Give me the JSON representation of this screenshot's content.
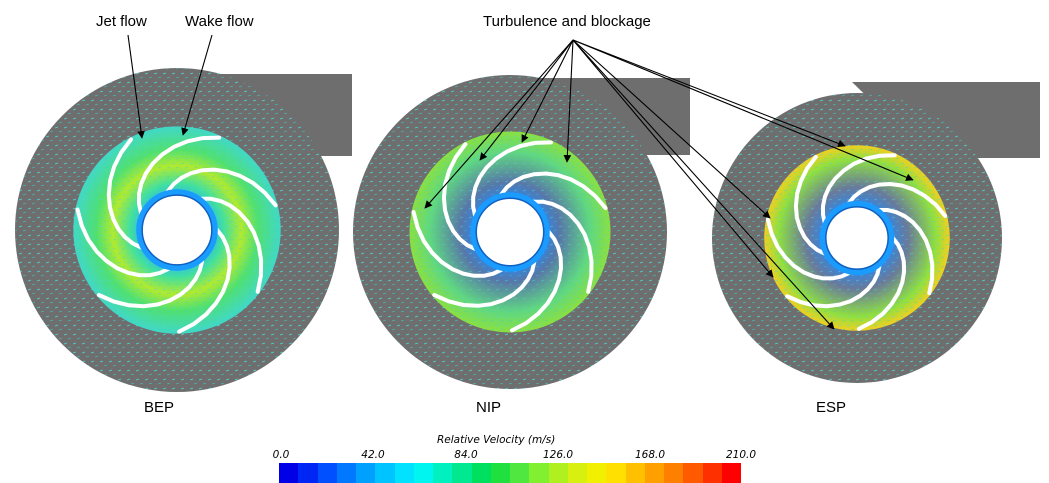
{
  "annotations": {
    "jet": "Jet flow",
    "wake": "Wake flow",
    "turbulence": "Turbulence and blockage"
  },
  "cases": [
    {
      "label": "BEP"
    },
    {
      "label": "NIP"
    },
    {
      "label": "ESP"
    }
  ],
  "colorbar": {
    "title": "Relative Velocity (m/s)",
    "ticks": [
      "0.0",
      "42.0",
      "84.0",
      "126.0",
      "168.0",
      "210.0"
    ],
    "range": [
      0.0,
      210.0
    ],
    "colors": [
      "#0000e6",
      "#0026f5",
      "#0050ff",
      "#0078ff",
      "#00a0ff",
      "#00c4ff",
      "#00e2ff",
      "#00f5f0",
      "#00f0c0",
      "#00e890",
      "#00e060",
      "#20e040",
      "#50e840",
      "#80f030",
      "#b0f020",
      "#d8f010",
      "#f0f000",
      "#ffe000",
      "#ffc000",
      "#ffa000",
      "#ff8000",
      "#ff5a00",
      "#ff3000",
      "#ff0000"
    ]
  },
  "style": {
    "casing": "#6e6e6e",
    "blade": "#ffffff",
    "hub": "#ffffff",
    "arrow": "#000000"
  }
}
